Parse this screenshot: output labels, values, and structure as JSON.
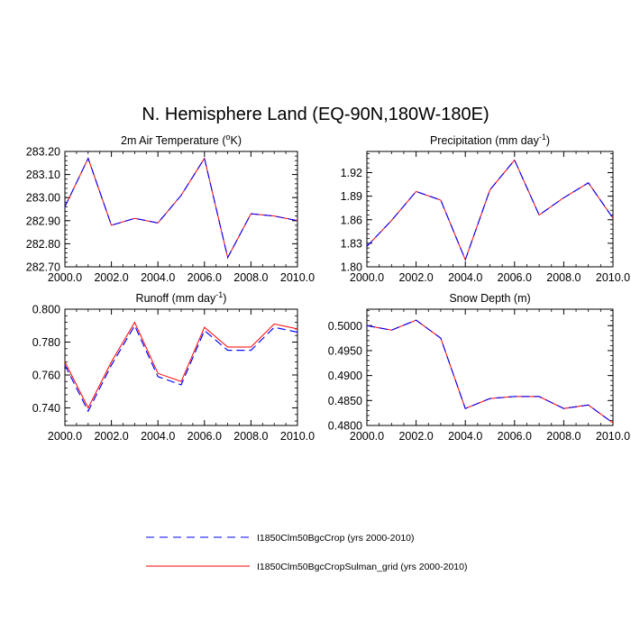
{
  "figure": {
    "title": "N. Hemisphere Land (EQ-90N,180W-180E)",
    "series_styles": [
      {
        "name": "I1850Clm50BgcCrop (yrs 2000-2010)",
        "color": "#0000ff",
        "dashed": true
      },
      {
        "name": "I1850Clm50BgcCropSulman_grid (yrs 2000-2010)",
        "color": "#ff0000",
        "dashed": false
      }
    ]
  },
  "legend": {
    "items": [
      {
        "label": "I1850Clm50BgcCrop (yrs 2000-2010)",
        "color": "#0000ff",
        "dashed": true
      },
      {
        "label": "I1850Clm50BgcCropSulman_grid (yrs 2000-2010)",
        "color": "#ff0000",
        "dashed": false
      }
    ]
  },
  "chart_data": [
    {
      "type": "line",
      "title_main": "2m Air Temperature (",
      "title_sup": "o",
      "title_tail": "K)",
      "x": [
        2000,
        2001,
        2002,
        2003,
        2004,
        2005,
        2006,
        2007,
        2008,
        2009,
        2010
      ],
      "xlim": [
        2000,
        2010
      ],
      "xticks": [
        "2000.0",
        "2002.0",
        "2004.0",
        "2006.0",
        "2008.0",
        "2010.0"
      ],
      "xtick_values": [
        2000,
        2002,
        2004,
        2006,
        2008,
        2010
      ],
      "ylim": [
        282.7,
        283.2
      ],
      "yticks": [
        "282.70",
        "282.80",
        "282.90",
        "283.00",
        "283.10",
        "283.20"
      ],
      "ytick_values": [
        282.7,
        282.8,
        282.9,
        283.0,
        283.1,
        283.2
      ],
      "yticks_side": "left",
      "series": [
        {
          "name": "I1850Clm50BgcCrop (yrs 2000-2010)",
          "values": [
            282.96,
            283.17,
            282.88,
            282.91,
            282.89,
            283.01,
            283.17,
            282.74,
            282.93,
            282.92,
            282.9
          ]
        },
        {
          "name": "I1850Clm50BgcCropSulman_grid (yrs 2000-2010)",
          "values": [
            282.96,
            283.17,
            282.88,
            282.91,
            282.89,
            283.01,
            283.17,
            282.74,
            282.93,
            282.92,
            282.9
          ]
        }
      ]
    },
    {
      "type": "line",
      "title_main": "Precipitation (mm day",
      "title_sup": "-1",
      "title_tail": ")",
      "x": [
        2000,
        2001,
        2002,
        2003,
        2004,
        2005,
        2006,
        2007,
        2008,
        2009,
        2010
      ],
      "xlim": [
        2000,
        2010
      ],
      "xticks": [
        "2000.0",
        "2002.0",
        "2004.0",
        "2006.0",
        "2008.0",
        "2010.0"
      ],
      "xtick_values": [
        2000,
        2002,
        2004,
        2006,
        2008,
        2010
      ],
      "ylim": [
        1.8,
        1.947
      ],
      "yticks": [
        "1.80",
        "1.83",
        "1.86",
        "1.89",
        "1.92"
      ],
      "ytick_values": [
        1.8,
        1.83,
        1.86,
        1.89,
        1.92
      ],
      "yticks_side": "left",
      "series": [
        {
          "name": "I1850Clm50BgcCrop (yrs 2000-2010)",
          "values": [
            1.826,
            1.859,
            1.896,
            1.885,
            1.809,
            1.898,
            1.936,
            1.866,
            1.888,
            1.907,
            1.862
          ]
        },
        {
          "name": "I1850Clm50BgcCropSulman_grid (yrs 2000-2010)",
          "values": [
            1.826,
            1.859,
            1.896,
            1.885,
            1.809,
            1.898,
            1.936,
            1.866,
            1.888,
            1.907,
            1.862
          ]
        }
      ]
    },
    {
      "type": "line",
      "title_main": "Runoff (mm day",
      "title_sup": "-1",
      "title_tail": ")",
      "x": [
        2000,
        2001,
        2002,
        2003,
        2004,
        2005,
        2006,
        2007,
        2008,
        2009,
        2010
      ],
      "xlim": [
        2000,
        2010
      ],
      "xticks": [
        "2000.0",
        "2002.0",
        "2004.0",
        "2006.0",
        "2008.0",
        "2010.0"
      ],
      "xtick_values": [
        2000,
        2002,
        2004,
        2006,
        2008,
        2010
      ],
      "ylim": [
        0.7293,
        0.8
      ],
      "yticks": [
        "0.740",
        "0.760",
        "0.780",
        "0.800"
      ],
      "ytick_values": [
        0.74,
        0.76,
        0.78,
        0.8
      ],
      "yticks_side": "left",
      "series": [
        {
          "name": "I1850Clm50BgcCrop (yrs 2000-2010)",
          "values": [
            0.766,
            0.738,
            0.766,
            0.79,
            0.759,
            0.754,
            0.787,
            0.775,
            0.775,
            0.789,
            0.786
          ]
        },
        {
          "name": "I1850Clm50BgcCropSulman_grid (yrs 2000-2010)",
          "values": [
            0.768,
            0.74,
            0.768,
            0.792,
            0.761,
            0.756,
            0.789,
            0.777,
            0.777,
            0.791,
            0.788
          ]
        }
      ]
    },
    {
      "type": "line",
      "title_main": "Snow Depth (m)",
      "title_sup": "",
      "title_tail": "",
      "x": [
        2000,
        2001,
        2002,
        2003,
        2004,
        2005,
        2006,
        2007,
        2008,
        2009,
        2010
      ],
      "xlim": [
        2000,
        2010
      ],
      "xticks": [
        "2000.0",
        "2002.0",
        "2004.0",
        "2006.0",
        "2008.0",
        "2010.0"
      ],
      "xtick_values": [
        2000,
        2002,
        2004,
        2006,
        2008,
        2010
      ],
      "ylim": [
        0.48,
        0.5033
      ],
      "yticks": [
        "0.4800",
        "0.4850",
        "0.4900",
        "0.4950",
        "0.5000"
      ],
      "ytick_values": [
        0.48,
        0.485,
        0.49,
        0.495,
        0.5
      ],
      "yticks_side": "left",
      "series": [
        {
          "name": "I1850Clm50BgcCrop (yrs 2000-2010)",
          "values": [
            0.5,
            0.4991,
            0.5011,
            0.4975,
            0.4834,
            0.4854,
            0.4858,
            0.4858,
            0.4834,
            0.4841,
            0.4805
          ]
        },
        {
          "name": "I1850Clm50BgcCropSulman_grid (yrs 2000-2010)",
          "values": [
            0.5,
            0.4991,
            0.5011,
            0.4975,
            0.4834,
            0.4854,
            0.4858,
            0.4858,
            0.4834,
            0.4841,
            0.4805
          ]
        }
      ]
    }
  ]
}
